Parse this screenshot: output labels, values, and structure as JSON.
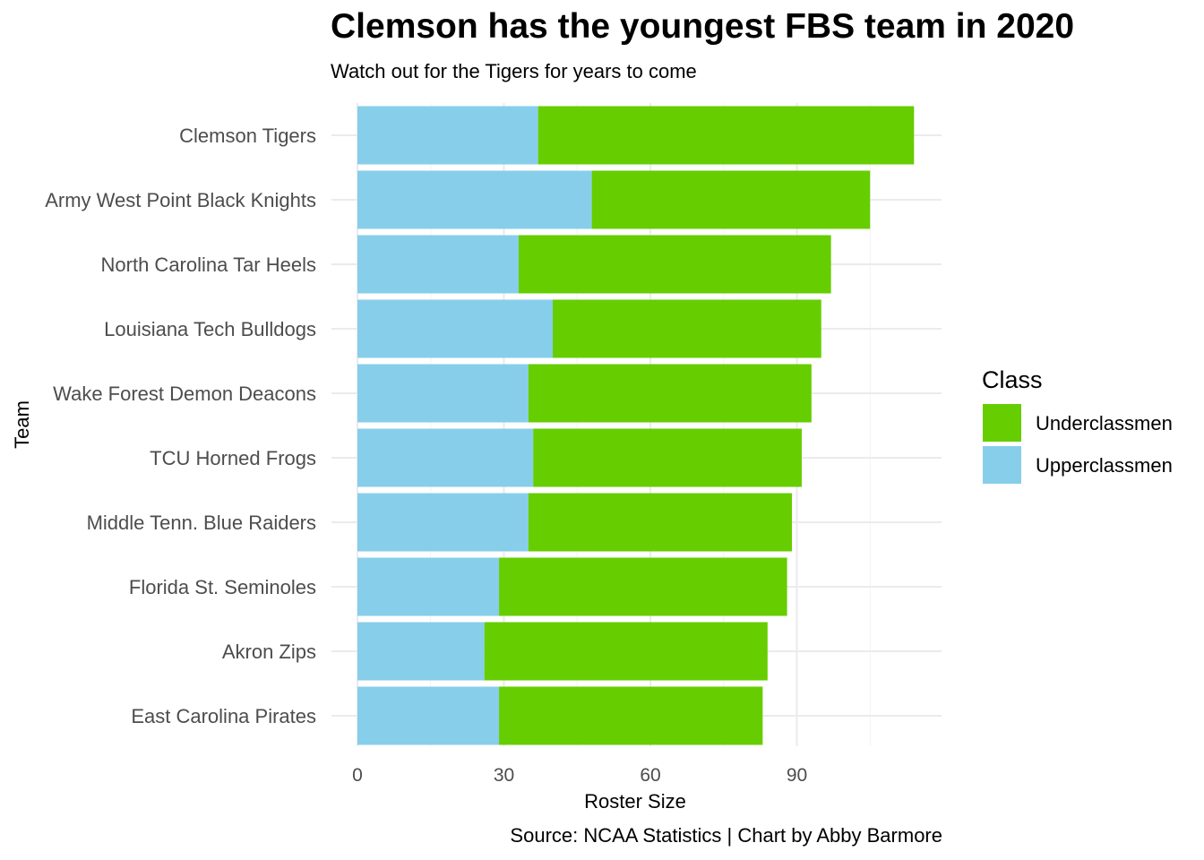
{
  "chart_data": {
    "type": "bar",
    "orientation": "horizontal",
    "stacked": true,
    "title": "Clemson has the youngest FBS team in 2020",
    "subtitle": "Watch out for the Tigers for years to come",
    "caption": "Source: NCAA Statistics | Chart by Abby Barmore",
    "xlabel": "Roster Size",
    "ylabel": "Team",
    "xlim": [
      0,
      120
    ],
    "x_ticks": [
      0,
      30,
      60,
      90
    ],
    "grid": true,
    "legend": {
      "title": "Class",
      "position": "right",
      "entries": [
        {
          "name": "Underclassmen",
          "color": "#66cd00"
        },
        {
          "name": "Upperclassmen",
          "color": "#87ceeb"
        }
      ]
    },
    "categories": [
      "Clemson Tigers",
      "Army West Point Black Knights",
      "North Carolina Tar Heels",
      "Louisiana Tech Bulldogs",
      "Wake Forest Demon Deacons",
      "TCU Horned Frogs",
      "Middle Tenn. Blue Raiders",
      "Florida St. Seminoles",
      "Akron Zips",
      "East Carolina Pirates"
    ],
    "series": [
      {
        "name": "Upperclassmen",
        "color": "#87ceeb",
        "values": [
          37,
          48,
          33,
          40,
          35,
          36,
          35,
          29,
          26,
          29
        ]
      },
      {
        "name": "Underclassmen",
        "color": "#66cd00",
        "values": [
          77,
          57,
          64,
          55,
          58,
          55,
          54,
          59,
          58,
          54
        ]
      }
    ]
  }
}
